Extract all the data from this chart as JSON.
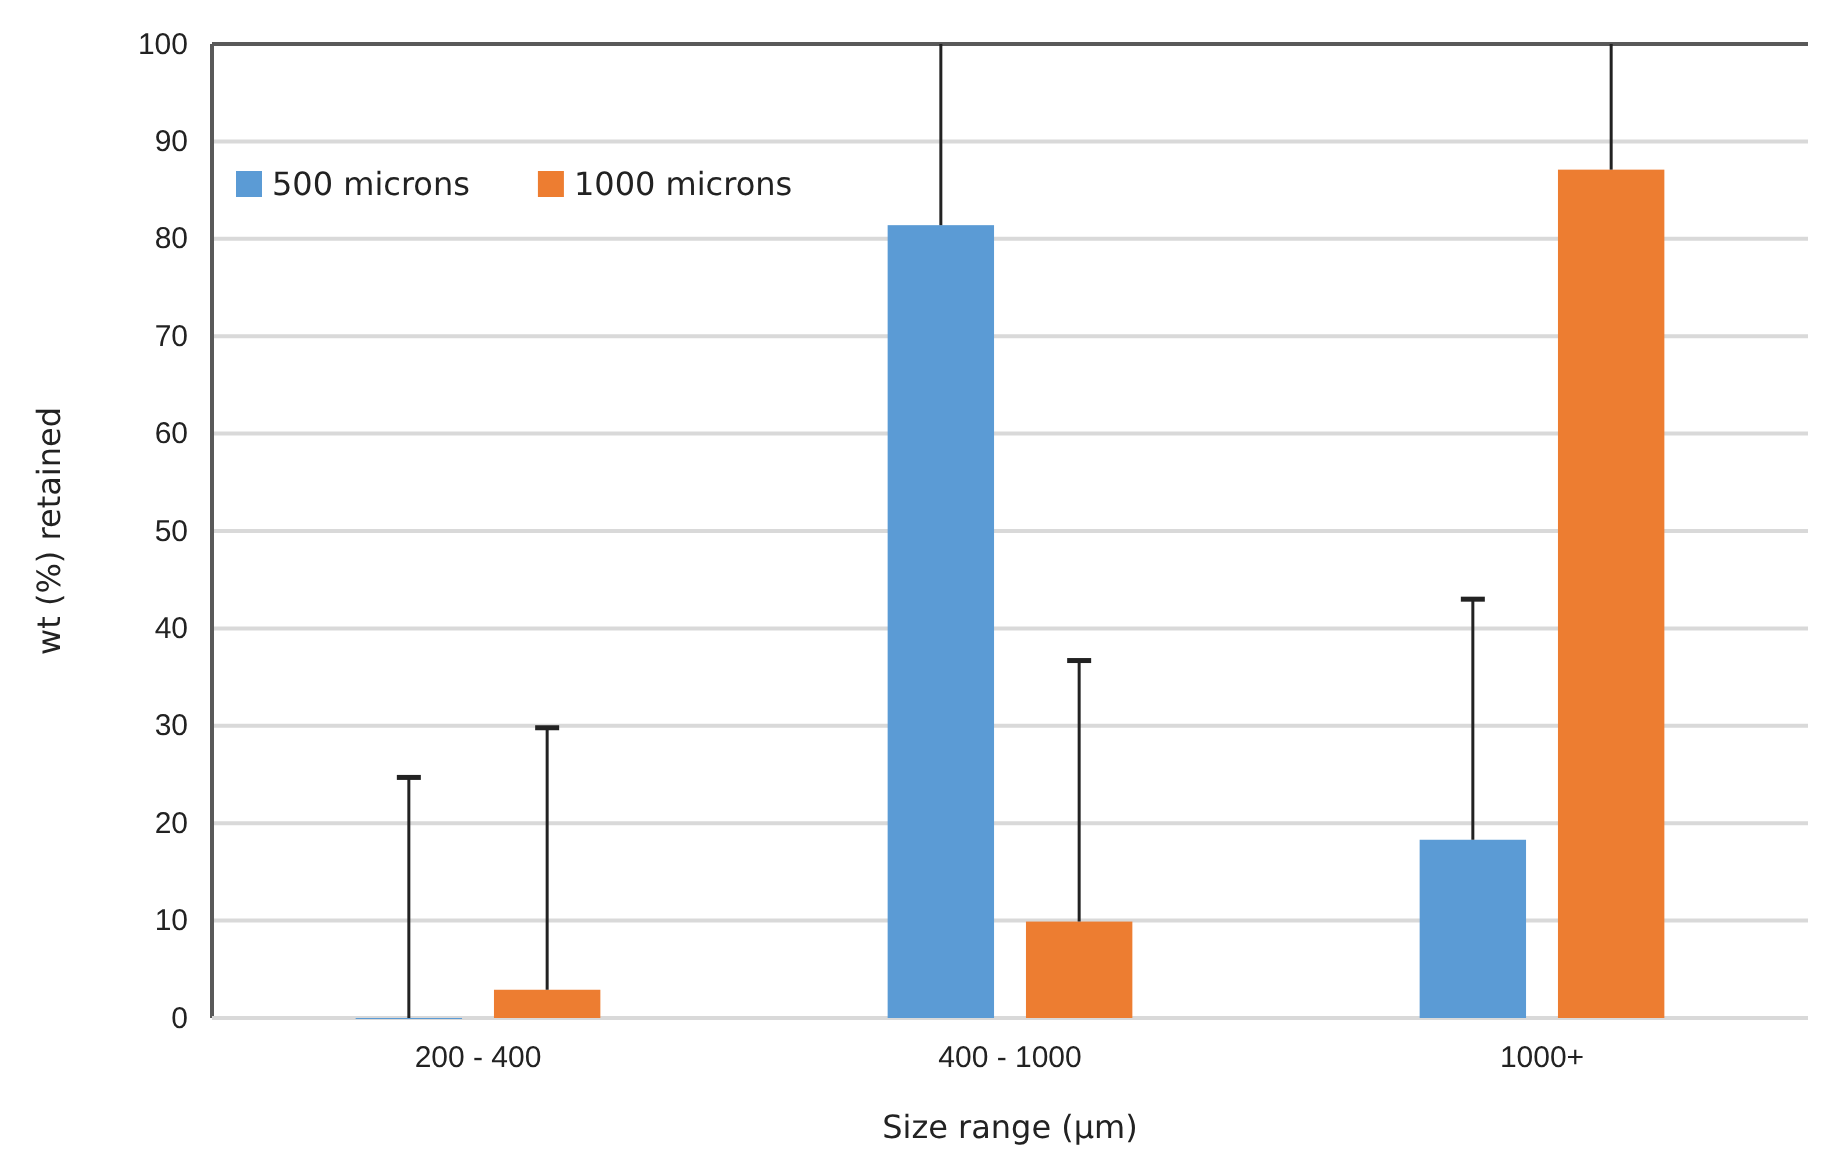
{
  "chart_data": {
    "type": "bar",
    "xlabel": "Size range (µm)",
    "ylabel": "wt (%) retained",
    "categories": [
      "200 - 400",
      "400 - 1000",
      "1000+"
    ],
    "series": [
      {
        "name": "500 microns",
        "color": "#5b9bd5",
        "values": [
          0,
          81.4,
          18.3
        ],
        "errors": [
          [
            0,
            24.7
          ],
          [
            81.4,
            100
          ],
          [
            18.3,
            43
          ]
        ]
      },
      {
        "name": "1000 microns",
        "color": "#ed7d31",
        "values": [
          2.9,
          9.9,
          87.1
        ],
        "errors": [
          [
            2.9,
            29.8
          ],
          [
            9.9,
            36.7
          ],
          [
            87.1,
            100
          ]
        ]
      }
    ],
    "ylim": [
      0,
      100
    ],
    "yticks": [
      0,
      10,
      20,
      30,
      40,
      50,
      60,
      70,
      80,
      90,
      100
    ],
    "grid": "y",
    "legend": "top left"
  }
}
